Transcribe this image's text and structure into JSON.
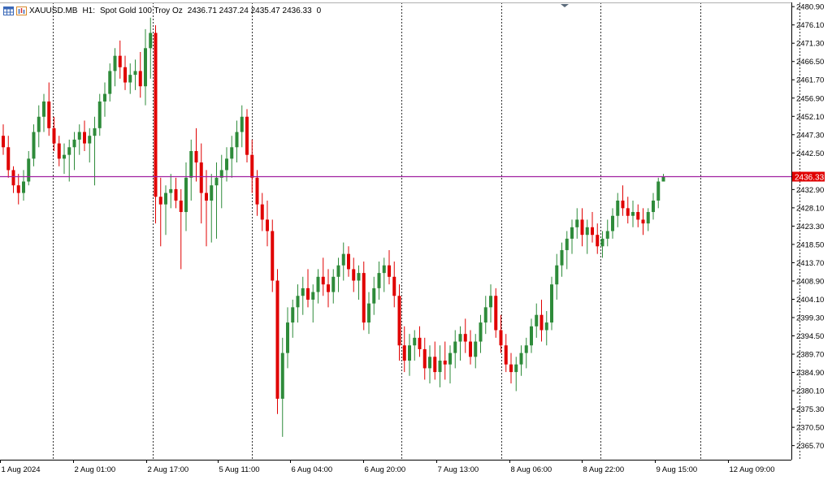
{
  "header": {
    "symbol": "XAUUSD.MB",
    "timeframe": "H1:",
    "description": "Spot Gold 100 Troy Oz",
    "ohlc": "2436.71 2437.24 2435.47 2436.33",
    "volume": "0",
    "icons": [
      "grid-window-icon",
      "bar-chart-icon"
    ]
  },
  "colors": {
    "bull": "#2e8b3a",
    "bear": "#e00000",
    "price_line": "#a020a0",
    "price_label_bg": "#e00000",
    "grid": "#000000",
    "axis": "#000000"
  },
  "chart_data": {
    "type": "candlestick",
    "symbol": "XAUUSD.MB",
    "timeframe": "H1",
    "current_price": 2436.33,
    "current_price_label": "2436.33",
    "ylim": [
      2362.0,
      2482.0
    ],
    "y_ticks": [
      "2480.90",
      "2476.10",
      "2471.30",
      "2466.50",
      "2461.70",
      "2456.90",
      "2452.10",
      "2447.30",
      "2442.50",
      "2437.70",
      "2432.90",
      "2428.10",
      "2423.30",
      "2418.50",
      "2413.70",
      "2408.90",
      "2404.10",
      "2399.30",
      "2394.50",
      "2389.70",
      "2384.90",
      "2380.10",
      "2375.30",
      "2370.50",
      "2365.70"
    ],
    "x_labels": [
      "1 Aug 2024",
      "2 Aug 01:00",
      "2 Aug 17:00",
      "5 Aug 11:00",
      "6 Aug 04:00",
      "6 Aug 20:00",
      "7 Aug 13:00",
      "8 Aug 06:00",
      "8 Aug 22:00",
      "9 Aug 15:00",
      "12 Aug 09:00"
    ],
    "period_separators": [
      2,
      6,
      10,
      16,
      20,
      24,
      28,
      32,
      36
    ],
    "grid": "vertical-dashed",
    "candles": [
      [
        2447,
        2450,
        2442,
        2444
      ],
      [
        2444,
        2447,
        2436,
        2438
      ],
      [
        2438,
        2439,
        2432,
        2434
      ],
      [
        2434,
        2437,
        2429,
        2432
      ],
      [
        2432,
        2438,
        2430,
        2435
      ],
      [
        2435,
        2443,
        2434,
        2441
      ],
      [
        2441,
        2450,
        2439,
        2448
      ],
      [
        2448,
        2455,
        2444,
        2452
      ],
      [
        2452,
        2458,
        2448,
        2456
      ],
      [
        2456,
        2461,
        2447,
        2449
      ],
      [
        2449,
        2452,
        2443,
        2445
      ],
      [
        2445,
        2447,
        2439,
        2441
      ],
      [
        2441,
        2445,
        2437,
        2442
      ],
      [
        2442,
        2446,
        2435,
        2444
      ],
      [
        2444,
        2448,
        2438,
        2446
      ],
      [
        2446,
        2450,
        2442,
        2448
      ],
      [
        2448,
        2451,
        2443,
        2445
      ],
      [
        2445,
        2449,
        2440,
        2447
      ],
      [
        2447,
        2452,
        2434,
        2449
      ],
      [
        2449,
        2458,
        2447,
        2456
      ],
      [
        2456,
        2461,
        2452,
        2458
      ],
      [
        2458,
        2466,
        2456,
        2464
      ],
      [
        2464,
        2470,
        2460,
        2468
      ],
      [
        2468,
        2472,
        2462,
        2465
      ],
      [
        2465,
        2468,
        2459,
        2461
      ],
      [
        2461,
        2466,
        2458,
        2463
      ],
      [
        2463,
        2467,
        2459,
        2464
      ],
      [
        2464,
        2469,
        2457,
        2460
      ],
      [
        2460,
        2475,
        2455,
        2470
      ],
      [
        2470,
        2478,
        2462,
        2474
      ],
      [
        2474,
        2476,
        2424,
        2431
      ],
      [
        2431,
        2436,
        2418,
        2429
      ],
      [
        2429,
        2434,
        2421,
        2432
      ],
      [
        2432,
        2437,
        2428,
        2433
      ],
      [
        2433,
        2436,
        2428,
        2430
      ],
      [
        2430,
        2433,
        2412,
        2427
      ],
      [
        2427,
        2440,
        2422,
        2436
      ],
      [
        2436,
        2446,
        2430,
        2443
      ],
      [
        2443,
        2449,
        2435,
        2440
      ],
      [
        2440,
        2445,
        2424,
        2432
      ],
      [
        2432,
        2438,
        2418,
        2430
      ],
      [
        2430,
        2437,
        2419,
        2434
      ],
      [
        2434,
        2440,
        2420,
        2436
      ],
      [
        2436,
        2442,
        2428,
        2438
      ],
      [
        2438,
        2444,
        2435,
        2441
      ],
      [
        2441,
        2447,
        2436,
        2444
      ],
      [
        2444,
        2451,
        2440,
        2448
      ],
      [
        2448,
        2455,
        2444,
        2452
      ],
      [
        2452,
        2454,
        2440,
        2442
      ],
      [
        2442,
        2446,
        2432,
        2436
      ],
      [
        2436,
        2438,
        2426,
        2429
      ],
      [
        2429,
        2432,
        2422,
        2425
      ],
      [
        2425,
        2430,
        2418,
        2422
      ],
      [
        2422,
        2425,
        2406,
        2409
      ],
      [
        2409,
        2412,
        2374,
        2378
      ],
      [
        2378,
        2394,
        2368,
        2390
      ],
      [
        2390,
        2402,
        2386,
        2398
      ],
      [
        2398,
        2404,
        2394,
        2402
      ],
      [
        2402,
        2408,
        2398,
        2405
      ],
      [
        2405,
        2410,
        2400,
        2407
      ],
      [
        2407,
        2412,
        2402,
        2404
      ],
      [
        2404,
        2408,
        2398,
        2406
      ],
      [
        2406,
        2412,
        2403,
        2410
      ],
      [
        2410,
        2415,
        2405,
        2408
      ],
      [
        2408,
        2412,
        2402,
        2406
      ],
      [
        2406,
        2412,
        2403,
        2410
      ],
      [
        2410,
        2415,
        2406,
        2413
      ],
      [
        2413,
        2419,
        2409,
        2416
      ],
      [
        2416,
        2418,
        2410,
        2412
      ],
      [
        2412,
        2415,
        2406,
        2409
      ],
      [
        2409,
        2413,
        2404,
        2411
      ],
      [
        2411,
        2414,
        2396,
        2398
      ],
      [
        2398,
        2406,
        2395,
        2403
      ],
      [
        2403,
        2410,
        2400,
        2407
      ],
      [
        2407,
        2414,
        2404,
        2411
      ],
      [
        2411,
        2415,
        2406,
        2413
      ],
      [
        2413,
        2417,
        2408,
        2410
      ],
      [
        2410,
        2414,
        2402,
        2405
      ],
      [
        2405,
        2408,
        2388,
        2392
      ],
      [
        2392,
        2397,
        2385,
        2388
      ],
      [
        2388,
        2395,
        2384,
        2392
      ],
      [
        2392,
        2396,
        2388,
        2394
      ],
      [
        2394,
        2397,
        2389,
        2391
      ],
      [
        2391,
        2394,
        2383,
        2386
      ],
      [
        2386,
        2392,
        2382,
        2389
      ],
      [
        2389,
        2393,
        2383,
        2385
      ],
      [
        2385,
        2392,
        2381,
        2388
      ],
      [
        2388,
        2393,
        2383,
        2387
      ],
      [
        2387,
        2392,
        2382,
        2390
      ],
      [
        2390,
        2396,
        2386,
        2393
      ],
      [
        2393,
        2397,
        2388,
        2395
      ],
      [
        2395,
        2399,
        2390,
        2393
      ],
      [
        2393,
        2396,
        2387,
        2389
      ],
      [
        2389,
        2395,
        2386,
        2393
      ],
      [
        2393,
        2400,
        2390,
        2398
      ],
      [
        2398,
        2405,
        2395,
        2402
      ],
      [
        2402,
        2408,
        2398,
        2405
      ],
      [
        2405,
        2407,
        2394,
        2396
      ],
      [
        2396,
        2400,
        2390,
        2392
      ],
      [
        2392,
        2395,
        2385,
        2387
      ],
      [
        2387,
        2390,
        2382,
        2385
      ],
      [
        2385,
        2389,
        2380,
        2387
      ],
      [
        2387,
        2392,
        2384,
        2390
      ],
      [
        2390,
        2394,
        2386,
        2392
      ],
      [
        2392,
        2399,
        2390,
        2397
      ],
      [
        2397,
        2403,
        2394,
        2400
      ],
      [
        2400,
        2404,
        2393,
        2396
      ],
      [
        2396,
        2401,
        2392,
        2398
      ],
      [
        2398,
        2410,
        2396,
        2408
      ],
      [
        2408,
        2416,
        2404,
        2413
      ],
      [
        2413,
        2419,
        2410,
        2417
      ],
      [
        2417,
        2422,
        2412,
        2420
      ],
      [
        2420,
        2425,
        2416,
        2423
      ],
      [
        2423,
        2428,
        2420,
        2425
      ],
      [
        2425,
        2428,
        2418,
        2421
      ],
      [
        2421,
        2425,
        2416,
        2423
      ],
      [
        2423,
        2427,
        2419,
        2421
      ],
      [
        2421,
        2424,
        2416,
        2418
      ],
      [
        2418,
        2422,
        2415,
        2420
      ],
      [
        2420,
        2425,
        2418,
        2422
      ],
      [
        2422,
        2428,
        2420,
        2426
      ],
      [
        2426,
        2432,
        2423,
        2430
      ],
      [
        2430,
        2434,
        2426,
        2428
      ],
      [
        2428,
        2431,
        2424,
        2426
      ],
      [
        2426,
        2430,
        2423,
        2427
      ],
      [
        2427,
        2429,
        2423,
        2425
      ],
      [
        2425,
        2428,
        2421,
        2424
      ],
      [
        2424,
        2428,
        2422,
        2427
      ],
      [
        2427,
        2432,
        2425,
        2430
      ],
      [
        2430,
        2436,
        2428,
        2435
      ],
      [
        2435,
        2437,
        2435,
        2436.33
      ]
    ]
  }
}
